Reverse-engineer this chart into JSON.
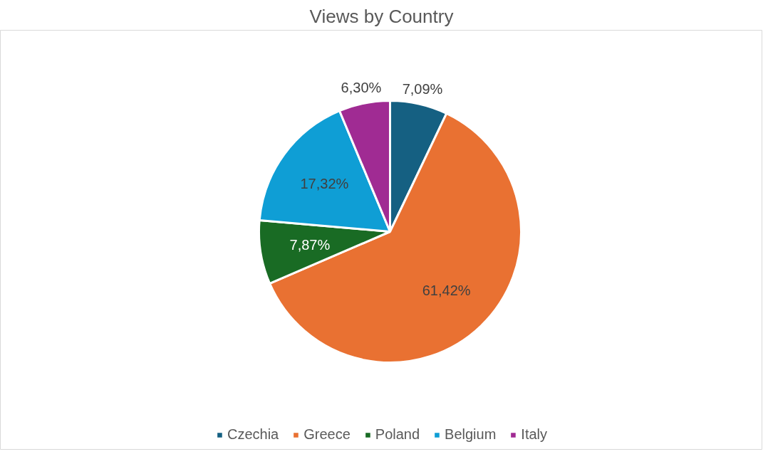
{
  "chart_data": {
    "type": "pie",
    "title": "Views by Country",
    "categories": [
      "Czechia",
      "Greece",
      "Poland",
      "Belgium",
      "Italy"
    ],
    "values": [
      7.09,
      61.42,
      7.87,
      17.32,
      6.3
    ],
    "value_labels": [
      "7,09%",
      "61,42%",
      "7,87%",
      "17,32%",
      "6,30%"
    ],
    "colors": [
      "#156082",
      "#e97132",
      "#196b24",
      "#0f9ed5",
      "#a02b93"
    ],
    "legend": "bottom"
  }
}
